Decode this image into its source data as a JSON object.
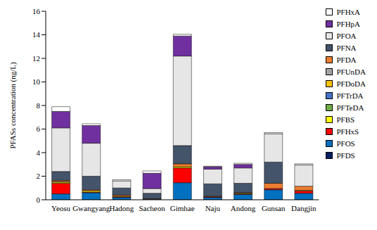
{
  "chart_data": {
    "type": "bar",
    "stacked": true,
    "y_label": "PFASs concentration (ng/L)",
    "categories": [
      "Yeosu",
      "Gwangyang",
      "Hadong",
      "Sacheon",
      "Gimhae",
      "Naju",
      "Andong",
      "Gunsan",
      "Dangjin"
    ],
    "ylim": [
      0,
      16
    ],
    "yticks": [
      0,
      2,
      4,
      6,
      8,
      10,
      12,
      14,
      16
    ],
    "grid": false,
    "legend": "right",
    "series": [
      {
        "name": "PFHxA",
        "color": "#ffffff",
        "values": [
          0.4,
          0.15,
          0.1,
          0.2,
          0.15,
          0.05,
          0.1,
          0.1,
          0.1
        ]
      },
      {
        "name": "PFHpA",
        "color": "#7030a0",
        "values": [
          1.4,
          1.5,
          0,
          1.3,
          1.7,
          0.2,
          0.3,
          0,
          0
        ]
      },
      {
        "name": "PFOA",
        "color": "#e7e6e6",
        "values": [
          3.7,
          2.8,
          0.6,
          0.4,
          7.6,
          1.25,
          1.3,
          2.4,
          1.8
        ]
      },
      {
        "name": "PFNA",
        "color": "#44546a",
        "values": [
          0.75,
          1.15,
          0.6,
          0.45,
          1.55,
          1.05,
          0.8,
          1.8,
          0
        ]
      },
      {
        "name": "PFDA",
        "color": "#ed7d31",
        "values": [
          0.1,
          0.1,
          0.1,
          0.05,
          0.25,
          0.05,
          0.05,
          0.45,
          0.35
        ]
      },
      {
        "name": "PFUnDA",
        "color": "#a5a5a5",
        "values": [
          0.05,
          0,
          0,
          0,
          0,
          0,
          0,
          0,
          0
        ]
      },
      {
        "name": "PFDoDA",
        "color": "#ffc000",
        "values": [
          0,
          0,
          0,
          0,
          0,
          0,
          0,
          0,
          0
        ]
      },
      {
        "name": "PFTrDA",
        "color": "#4472c4",
        "values": [
          0,
          0,
          0,
          0,
          0,
          0,
          0,
          0,
          0
        ]
      },
      {
        "name": "PFTeDA",
        "color": "#70ad47",
        "values": [
          0,
          0,
          0,
          0,
          0,
          0,
          0,
          0,
          0
        ]
      },
      {
        "name": "PFBS",
        "color": "#ffff00",
        "values": [
          0.1,
          0.1,
          0.05,
          0,
          0.1,
          0,
          0.05,
          0,
          0.05
        ]
      },
      {
        "name": "PFHxS",
        "color": "#ff0000",
        "values": [
          0.9,
          0.05,
          0.05,
          0,
          1.25,
          0.05,
          0.05,
          0.1,
          0.2
        ]
      },
      {
        "name": "PFOS",
        "color": "#0070c0",
        "values": [
          0.5,
          0.6,
          0.2,
          0.05,
          1.45,
          0.2,
          0.45,
          0.85,
          0.55
        ]
      },
      {
        "name": "PFDS",
        "color": "#002060",
        "values": [
          0,
          0,
          0,
          0,
          0,
          0,
          0,
          0,
          0
        ]
      }
    ]
  }
}
